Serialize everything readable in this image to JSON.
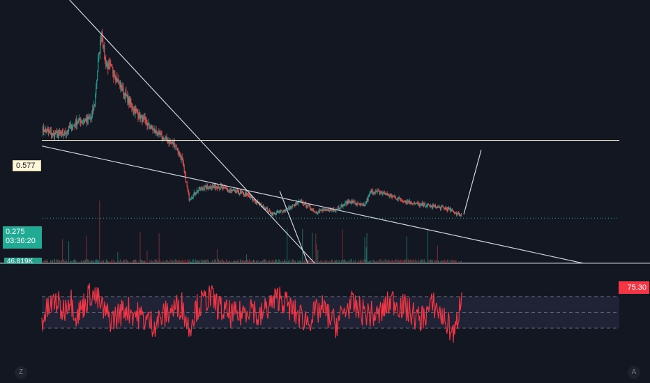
{
  "chart_data": [
    {
      "type": "candlestick",
      "title": "",
      "ylim": [
        0.1,
        1.0
      ],
      "x_count": 600,
      "colors": {
        "up": "#26a69a",
        "down": "#ef5350",
        "volume_up": "#1f6b63",
        "volume_down": "#7a2f35",
        "background": "#131722"
      },
      "price_anchors": [
        [
          0,
          0.62
        ],
        [
          15,
          0.6
        ],
        [
          30,
          0.6
        ],
        [
          50,
          0.65
        ],
        [
          70,
          0.66
        ],
        [
          75,
          0.72
        ],
        [
          80,
          0.88
        ],
        [
          85,
          1.0
        ],
        [
          90,
          0.88
        ],
        [
          100,
          0.85
        ],
        [
          115,
          0.77
        ],
        [
          130,
          0.7
        ],
        [
          150,
          0.64
        ],
        [
          170,
          0.59
        ],
        [
          190,
          0.56
        ],
        [
          200,
          0.5
        ],
        [
          210,
          0.35
        ],
        [
          225,
          0.39
        ],
        [
          250,
          0.4
        ],
        [
          260,
          0.39
        ],
        [
          270,
          0.38
        ],
        [
          290,
          0.37
        ],
        [
          310,
          0.33
        ],
        [
          330,
          0.29
        ],
        [
          350,
          0.31
        ],
        [
          370,
          0.34
        ],
        [
          390,
          0.3
        ],
        [
          420,
          0.31
        ],
        [
          440,
          0.34
        ],
        [
          460,
          0.32
        ],
        [
          470,
          0.38
        ],
        [
          490,
          0.37
        ],
        [
          520,
          0.34
        ],
        [
          535,
          0.33
        ],
        [
          560,
          0.32
        ],
        [
          580,
          0.31
        ],
        [
          595,
          0.29
        ],
        [
          600,
          0.285
        ]
      ],
      "annotations": {
        "horizontal_line": {
          "price": 0.577,
          "label": "0.577",
          "color": "#fdf6d8"
        },
        "last_price": {
          "price": 0.275,
          "label": "0.275",
          "countdown": "03:36:20",
          "color": "#22ab94"
        },
        "volume_label": "46.819K",
        "trendlines": [
          {
            "from": [
              0,
              0.555
            ],
            "to": [
              560,
              0.1
            ],
            "color": "#d1d4dc"
          },
          {
            "from": [
              30,
              1.15
            ],
            "to": [
              390,
              0.1
            ],
            "color": "#d1d4dc"
          },
          {
            "from": [
              340,
              0.38
            ],
            "to": [
              380,
              0.1
            ],
            "color": "#d1d4dc"
          },
          {
            "from": [
              3,
              0.29
            ],
            "to": [
              28,
              0.54
            ],
            "color": "#d1d4dc"
          }
        ]
      }
    },
    {
      "type": "line",
      "title": "",
      "series": [
        {
          "name": "",
          "color": "#f23645",
          "last_value": 75.3,
          "last_label": "75.30"
        }
      ],
      "ylim": [
        0,
        100
      ],
      "band": {
        "upper": 70,
        "middle": 50,
        "lower": 30
      },
      "x_count": 600,
      "value_anchors": [
        [
          0,
          40
        ],
        [
          10,
          55
        ],
        [
          20,
          65
        ],
        [
          30,
          50
        ],
        [
          40,
          70
        ],
        [
          50,
          45
        ],
        [
          60,
          60
        ],
        [
          70,
          75
        ],
        [
          80,
          65
        ],
        [
          90,
          50
        ],
        [
          100,
          40
        ],
        [
          120,
          55
        ],
        [
          140,
          45
        ],
        [
          160,
          35
        ],
        [
          180,
          50
        ],
        [
          200,
          60
        ],
        [
          210,
          30
        ],
        [
          220,
          55
        ],
        [
          240,
          70
        ],
        [
          260,
          50
        ],
        [
          280,
          45
        ],
        [
          300,
          60
        ],
        [
          310,
          40
        ],
        [
          320,
          55
        ],
        [
          340,
          70
        ],
        [
          360,
          50
        ],
        [
          380,
          40
        ],
        [
          400,
          55
        ],
        [
          420,
          35
        ],
        [
          440,
          60
        ],
        [
          460,
          50
        ],
        [
          480,
          45
        ],
        [
          500,
          65
        ],
        [
          520,
          55
        ],
        [
          540,
          40
        ],
        [
          560,
          60
        ],
        [
          580,
          35
        ],
        [
          590,
          20
        ],
        [
          600,
          75.3
        ]
      ]
    }
  ],
  "ui": {
    "corner_left": "Z",
    "corner_right": "A"
  }
}
